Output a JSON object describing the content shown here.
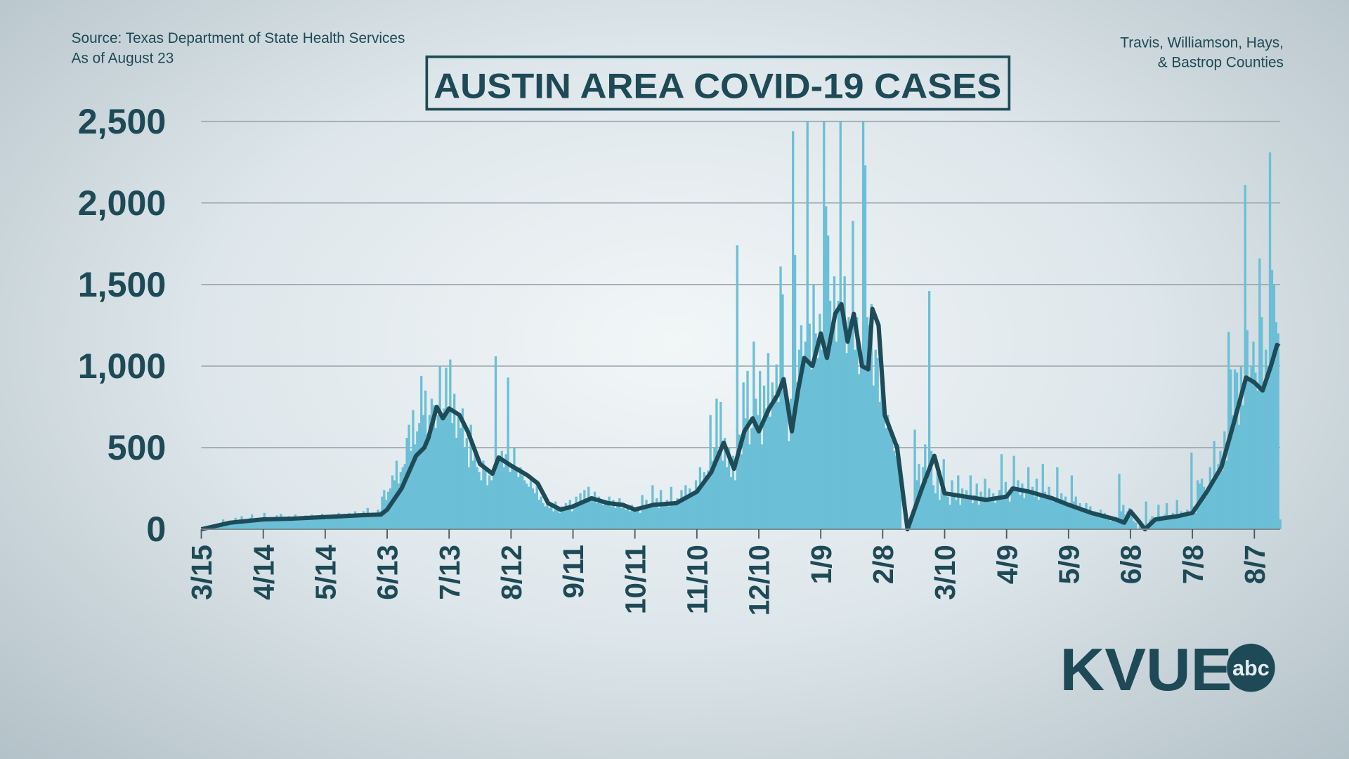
{
  "header": {
    "source": "Source: Texas Department of State Health Services",
    "as_of": "As of August 23",
    "region_line1": "Travis, Williamson, Hays,",
    "region_line2": "& Bastrop Counties"
  },
  "logo": {
    "text": "KVUE",
    "network": "abc"
  },
  "colors": {
    "bars": "#6bbfd6",
    "line": "#1e4b57",
    "text": "#1d4a56",
    "grid": "#9aa7ad"
  },
  "chart_data": {
    "type": "bar",
    "title": "AUSTIN AREA COVID-19 CASES",
    "xlabel": "",
    "ylabel": "",
    "ylim": [
      0,
      2500
    ],
    "grid": true,
    "yticks": [
      {
        "value": 0,
        "label": "0"
      },
      {
        "value": 500,
        "label": "500"
      },
      {
        "value": 1000,
        "label": "1,000"
      },
      {
        "value": 1500,
        "label": "1,500"
      },
      {
        "value": 2000,
        "label": "2,000"
      },
      {
        "value": 2500,
        "label": "2,500"
      }
    ],
    "xticks": [
      {
        "date": "2020-03-15",
        "label": "3/15"
      },
      {
        "date": "2020-04-14",
        "label": "4/14"
      },
      {
        "date": "2020-05-14",
        "label": "5/14"
      },
      {
        "date": "2020-06-13",
        "label": "6/13"
      },
      {
        "date": "2020-07-13",
        "label": "7/13"
      },
      {
        "date": "2020-08-12",
        "label": "8/12"
      },
      {
        "date": "2020-09-11",
        "label": "9/11"
      },
      {
        "date": "2020-10-11",
        "label": "10/11"
      },
      {
        "date": "2020-11-10",
        "label": "11/10"
      },
      {
        "date": "2020-12-10",
        "label": "12/10"
      },
      {
        "date": "2021-01-09",
        "label": "1/9"
      },
      {
        "date": "2021-02-08",
        "label": "2/8"
      },
      {
        "date": "2021-03-10",
        "label": "3/10"
      },
      {
        "date": "2021-04-09",
        "label": "4/9"
      },
      {
        "date": "2021-05-09",
        "label": "5/9"
      },
      {
        "date": "2021-06-08",
        "label": "6/8"
      },
      {
        "date": "2021-07-08",
        "label": "7/8"
      },
      {
        "date": "2021-08-07",
        "label": "8/7"
      }
    ],
    "x_start": "2020-03-15",
    "xlim": [
      "2020-03-15",
      "2021-08-23"
    ],
    "daily_cases": [
      2,
      5,
      8,
      10,
      12,
      15,
      20,
      25,
      30,
      35,
      60,
      30,
      40,
      45,
      50,
      45,
      70,
      55,
      60,
      80,
      50,
      60,
      55,
      70,
      90,
      50,
      65,
      60,
      55,
      70,
      100,
      60,
      65,
      75,
      50,
      60,
      85,
      70,
      95,
      60,
      55,
      70,
      80,
      60,
      75,
      90,
      70,
      65,
      80,
      70,
      85,
      60,
      75,
      90,
      80,
      65,
      75,
      70,
      95,
      80,
      60,
      85,
      70,
      80,
      90,
      75,
      100,
      85,
      70,
      95,
      85,
      100,
      90,
      80,
      110,
      95,
      90,
      95,
      110,
      100,
      130,
      85,
      100,
      90,
      100,
      120,
      110,
      200,
      240,
      180,
      230,
      250,
      330,
      300,
      420,
      280,
      350,
      380,
      400,
      560,
      640,
      480,
      730,
      520,
      600,
      650,
      940,
      700,
      850,
      580,
      700,
      800,
      760,
      620,
      700,
      1000,
      680,
      740,
      990,
      720,
      1040,
      650,
      830,
      560,
      700,
      620,
      740,
      500,
      560,
      380,
      640,
      420,
      460,
      380,
      350,
      300,
      420,
      360,
      270,
      330,
      300,
      340,
      1060,
      420,
      450,
      480,
      380,
      460,
      930,
      350,
      400,
      500,
      360,
      320,
      380,
      330,
      300,
      280,
      260,
      300,
      250,
      220,
      300,
      180,
      200,
      160,
      140,
      180,
      130,
      150,
      110,
      170,
      120,
      100,
      140,
      120,
      160,
      130,
      180,
      110,
      140,
      200,
      150,
      220,
      180,
      240,
      170,
      260,
      200,
      190,
      230,
      160,
      200,
      180,
      150,
      170,
      160,
      200,
      140,
      180,
      130,
      150,
      190,
      130,
      160,
      120,
      140,
      110,
      150,
      130,
      120,
      140,
      100,
      210,
      130,
      180,
      150,
      140,
      270,
      160,
      190,
      130,
      240,
      150,
      150,
      180,
      140,
      260,
      170,
      160,
      190,
      180,
      240,
      200,
      270,
      210,
      250,
      230,
      220,
      300,
      260,
      380,
      280,
      350,
      330,
      360,
      700,
      420,
      500,
      800,
      460,
      780,
      420,
      560,
      380,
      500,
      320,
      450,
      300,
      1740,
      580,
      460,
      900,
      680,
      970,
      520,
      620,
      1150,
      800,
      700,
      970,
      520,
      880,
      740,
      1080,
      690,
      900,
      820,
      1010,
      780,
      1610,
      1440,
      920,
      760,
      540,
      800,
      2440,
      1680,
      900,
      1100,
      1250,
      980,
      1150,
      2500,
      1260,
      980,
      1500,
      1200,
      1050,
      1320,
      1100,
      2500,
      1980,
      1800,
      1400,
      1250,
      1550,
      1150,
      1400,
      2500,
      1350,
      1550,
      1080,
      1300,
      1200,
      1890,
      1100,
      1300,
      950,
      1000,
      2500,
      2230,
      1300,
      1250,
      1380,
      880,
      1100,
      1050,
      780,
      920,
      800,
      620,
      700,
      600,
      550,
      480,
      450,
      520,
      380,
      0,
      0,
      50,
      30,
      40,
      120,
      610,
      300,
      400,
      250,
      380,
      520,
      300,
      1460,
      480,
      270,
      220,
      350,
      180,
      250,
      430,
      220,
      200,
      150,
      300,
      220,
      180,
      330,
      150,
      250,
      200,
      240,
      190,
      330,
      160,
      210,
      280,
      150,
      230,
      200,
      310,
      170,
      250,
      180,
      220,
      160,
      180,
      240,
      460,
      200,
      290,
      210,
      170,
      260,
      450,
      250,
      300,
      210,
      280,
      190,
      240,
      380,
      220,
      260,
      200,
      310,
      180,
      210,
      400,
      230,
      200,
      260,
      180,
      170,
      190,
      380,
      160,
      220,
      180,
      200,
      150,
      140,
      330,
      170,
      200,
      120,
      160,
      130,
      120,
      160,
      100,
      140,
      90,
      110,
      80,
      90,
      120,
      70,
      100,
      60,
      80,
      50,
      60,
      70,
      50,
      340,
      110,
      150,
      90,
      110,
      130,
      80,
      50,
      40,
      0,
      20,
      10,
      0,
      170,
      30,
      60,
      80,
      40,
      60,
      150,
      80,
      70,
      90,
      160,
      60,
      80,
      100,
      70,
      180,
      90,
      110,
      80,
      90,
      120,
      80,
      470,
      140,
      100,
      300,
      280,
      310,
      260,
      200,
      240,
      380,
      300,
      540,
      320,
      400,
      480,
      360,
      600,
      420,
      1210,
      980,
      700,
      980,
      960,
      640,
      1000,
      760,
      2110,
      1220,
      900,
      1000,
      1150,
      960,
      850,
      1660,
      1300,
      900,
      1100,
      1000,
      2310,
      1590,
      1500,
      1270,
      1200,
      60
    ],
    "average_line": [
      [
        "2020-03-15",
        0
      ],
      [
        "2020-03-29",
        40
      ],
      [
        "2020-04-14",
        60
      ],
      [
        "2020-04-28",
        65
      ],
      [
        "2020-05-14",
        75
      ],
      [
        "2020-05-30",
        85
      ],
      [
        "2020-06-10",
        90
      ],
      [
        "2020-06-13",
        120
      ],
      [
        "2020-06-20",
        250
      ],
      [
        "2020-06-27",
        450
      ],
      [
        "2020-07-01",
        500
      ],
      [
        "2020-07-03",
        560
      ],
      [
        "2020-07-07",
        750
      ],
      [
        "2020-07-10",
        680
      ],
      [
        "2020-07-13",
        740
      ],
      [
        "2020-07-18",
        700
      ],
      [
        "2020-07-22",
        600
      ],
      [
        "2020-07-28",
        400
      ],
      [
        "2020-08-03",
        340
      ],
      [
        "2020-08-06",
        440
      ],
      [
        "2020-08-12",
        390
      ],
      [
        "2020-08-20",
        330
      ],
      [
        "2020-08-25",
        280
      ],
      [
        "2020-08-30",
        160
      ],
      [
        "2020-09-05",
        120
      ],
      [
        "2020-09-11",
        140
      ],
      [
        "2020-09-20",
        190
      ],
      [
        "2020-09-28",
        160
      ],
      [
        "2020-10-05",
        150
      ],
      [
        "2020-10-11",
        120
      ],
      [
        "2020-10-20",
        150
      ],
      [
        "2020-10-31",
        160
      ],
      [
        "2020-11-10",
        230
      ],
      [
        "2020-11-17",
        350
      ],
      [
        "2020-11-23",
        530
      ],
      [
        "2020-11-28",
        370
      ],
      [
        "2020-12-03",
        600
      ],
      [
        "2020-12-07",
        680
      ],
      [
        "2020-12-10",
        600
      ],
      [
        "2020-12-15",
        740
      ],
      [
        "2020-12-19",
        820
      ],
      [
        "2020-12-22",
        920
      ],
      [
        "2020-12-26",
        600
      ],
      [
        "2020-12-29",
        850
      ],
      [
        "2021-01-01",
        1050
      ],
      [
        "2021-01-05",
        1000
      ],
      [
        "2021-01-09",
        1200
      ],
      [
        "2021-01-12",
        1050
      ],
      [
        "2021-01-16",
        1320
      ],
      [
        "2021-01-19",
        1380
      ],
      [
        "2021-01-22",
        1150
      ],
      [
        "2021-01-25",
        1320
      ],
      [
        "2021-01-29",
        1000
      ],
      [
        "2021-02-01",
        980
      ],
      [
        "2021-02-03",
        1350
      ],
      [
        "2021-02-06",
        1250
      ],
      [
        "2021-02-09",
        700
      ],
      [
        "2021-02-15",
        500
      ],
      [
        "2021-02-20",
        0
      ],
      [
        "2021-02-27",
        250
      ],
      [
        "2021-03-05",
        450
      ],
      [
        "2021-03-10",
        220
      ],
      [
        "2021-03-20",
        200
      ],
      [
        "2021-03-30",
        180
      ],
      [
        "2021-04-09",
        200
      ],
      [
        "2021-04-12",
        250
      ],
      [
        "2021-04-20",
        230
      ],
      [
        "2021-05-01",
        190
      ],
      [
        "2021-05-09",
        150
      ],
      [
        "2021-05-20",
        100
      ],
      [
        "2021-06-01",
        60
      ],
      [
        "2021-06-05",
        40
      ],
      [
        "2021-06-08",
        110
      ],
      [
        "2021-06-12",
        50
      ],
      [
        "2021-06-15",
        0
      ],
      [
        "2021-06-20",
        60
      ],
      [
        "2021-07-01",
        80
      ],
      [
        "2021-07-08",
        100
      ],
      [
        "2021-07-15",
        230
      ],
      [
        "2021-07-22",
        380
      ],
      [
        "2021-07-28",
        650
      ],
      [
        "2021-08-03",
        930
      ],
      [
        "2021-08-07",
        900
      ],
      [
        "2021-08-11",
        850
      ],
      [
        "2021-08-15",
        1000
      ],
      [
        "2021-08-18",
        1130
      ],
      [
        "2021-08-19",
        1120
      ]
    ]
  }
}
